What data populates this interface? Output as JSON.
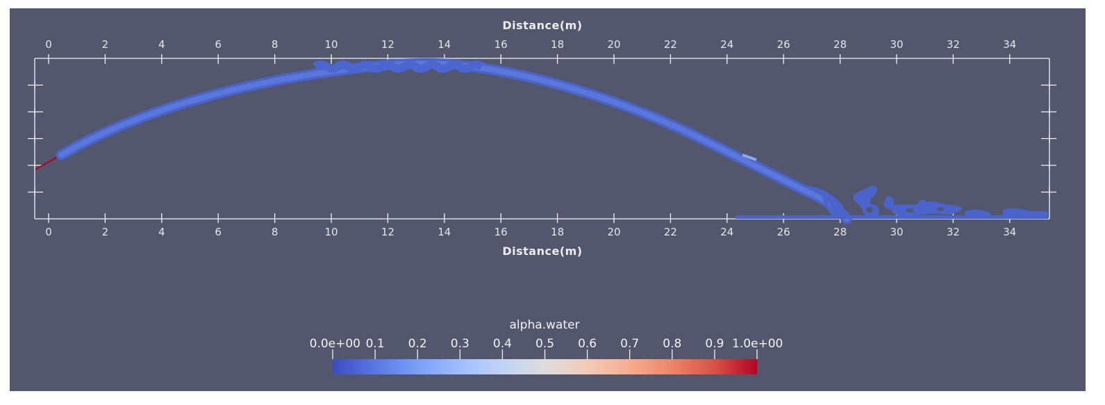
{
  "chart_data": {
    "type": "field-plot",
    "xlabel_top": "Distance(m)",
    "xlabel_bottom": "Distance(m)",
    "xlim": [
      -0.5,
      35.5
    ],
    "x_ticks": [
      "0",
      "2",
      "4",
      "6",
      "8",
      "10",
      "12",
      "14",
      "16",
      "18",
      "20",
      "22",
      "24",
      "26",
      "28",
      "30",
      "32",
      "34"
    ],
    "y_minor_ticks": 6,
    "colorbar": {
      "title": "alpha.water",
      "range": [
        0.0,
        1.0
      ],
      "tick_labels": [
        "0.0e+00",
        "0.1",
        "0.2",
        "0.3",
        "0.4",
        "0.5",
        "0.6",
        "0.7",
        "0.8",
        "0.9",
        "1.0e+00"
      ],
      "colors": [
        "#3b4cc0",
        "#5977e3",
        "#7b9ff9",
        "#9ebeff",
        "#c0d4f5",
        "#dddcdc",
        "#f2cbb7",
        "#f7ac8e",
        "#ee8468",
        "#d65244",
        "#b40426"
      ]
    },
    "jet_trajectory": {
      "description_free": true,
      "points": [
        [
          0.4,
          0.22
        ],
        [
          2,
          0.33
        ],
        [
          4,
          0.44
        ],
        [
          6,
          0.53
        ],
        [
          8,
          0.61
        ],
        [
          10,
          0.66
        ],
        [
          12,
          0.69
        ],
        [
          14,
          0.68
        ],
        [
          16,
          0.63
        ],
        [
          18,
          0.56
        ],
        [
          20,
          0.46
        ],
        [
          22,
          0.35
        ],
        [
          24,
          0.22
        ],
        [
          26,
          0.08
        ],
        [
          27.5,
          -0.05
        ]
      ]
    },
    "background_color": "#52576e"
  }
}
